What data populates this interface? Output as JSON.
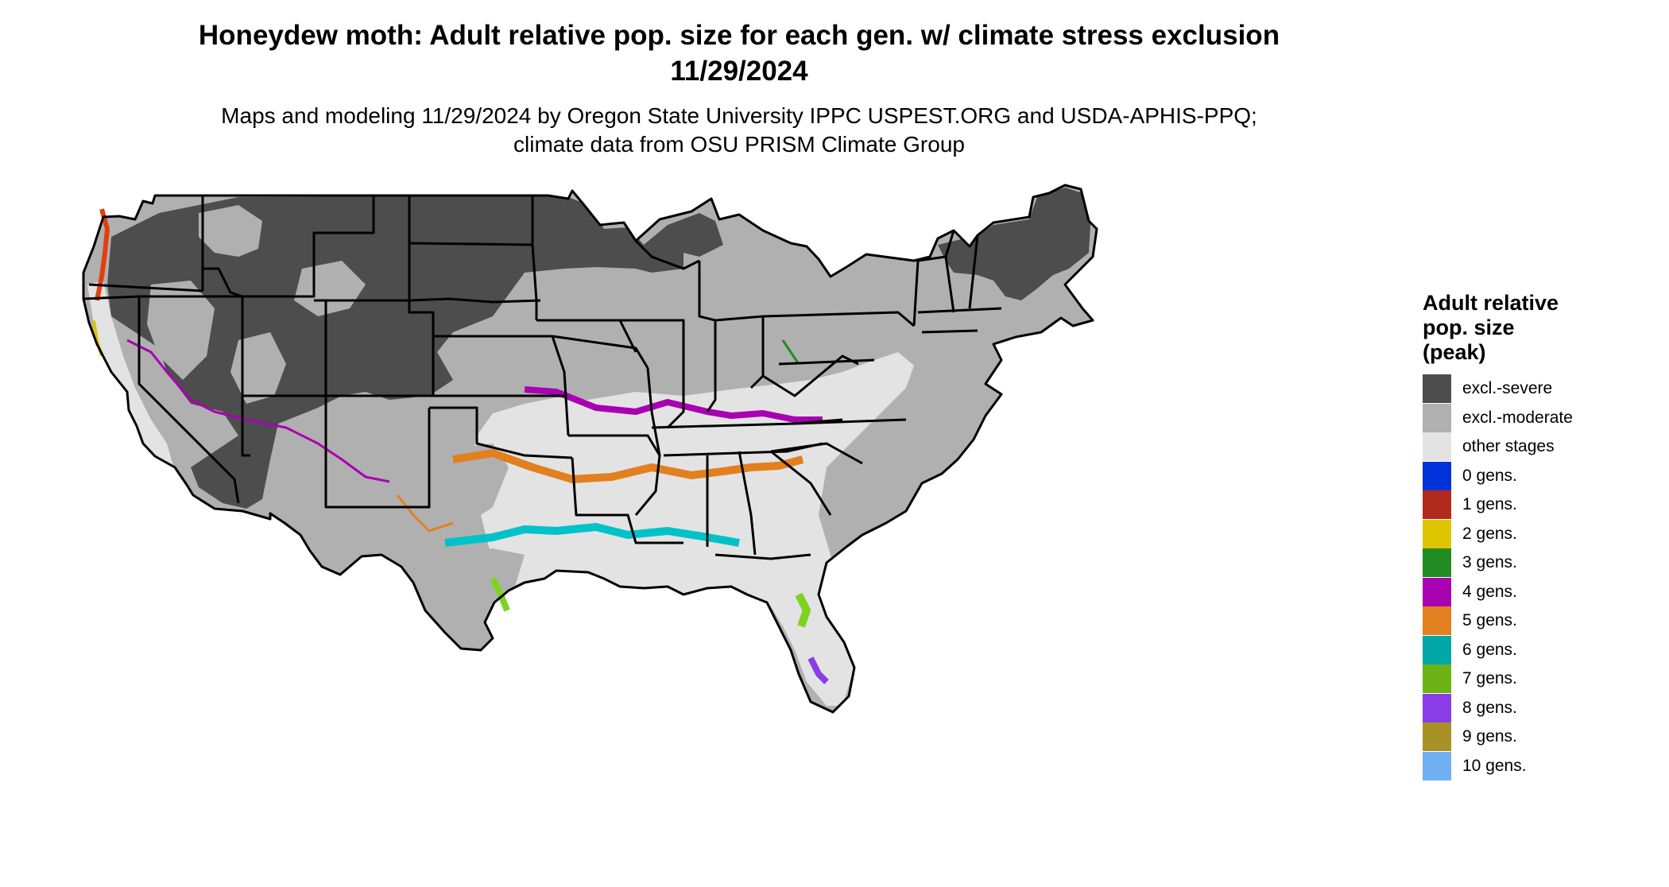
{
  "title": "Honeydew moth: Adult relative pop. size for each gen. w/ climate stress exclusion 11/29/2024",
  "subtitle": "Maps and modeling 11/29/2024 by Oregon State University IPPC USPEST.ORG and USDA-APHIS-PPQ; climate data from OSU PRISM Climate Group",
  "legend": {
    "title": "Adult relative\npop. size\n(peak)",
    "items": [
      {
        "label": "excl.-severe",
        "color": "#4d4d4d"
      },
      {
        "label": "excl.-moderate",
        "color": "#b0b0b0"
      },
      {
        "label": "other stages",
        "color": "#e3e3e3"
      },
      {
        "label": "0 gens.",
        "color": "#0033d9"
      },
      {
        "label": "1 gens.",
        "color": "#b22a1c"
      },
      {
        "label": "2 gens.",
        "color": "#dfc400"
      },
      {
        "label": "3 gens.",
        "color": "#228b22"
      },
      {
        "label": "4 gens.",
        "color": "#a800b3"
      },
      {
        "label": "5 gens.",
        "color": "#e2801f"
      },
      {
        "label": "6 gens.",
        "color": "#00a7a7"
      },
      {
        "label": "7 gens.",
        "color": "#6cb416"
      },
      {
        "label": "8 gens.",
        "color": "#8a3de6"
      },
      {
        "label": "9 gens.",
        "color": "#a89227"
      },
      {
        "label": "10 gens.",
        "color": "#6eb0f2"
      }
    ]
  }
}
